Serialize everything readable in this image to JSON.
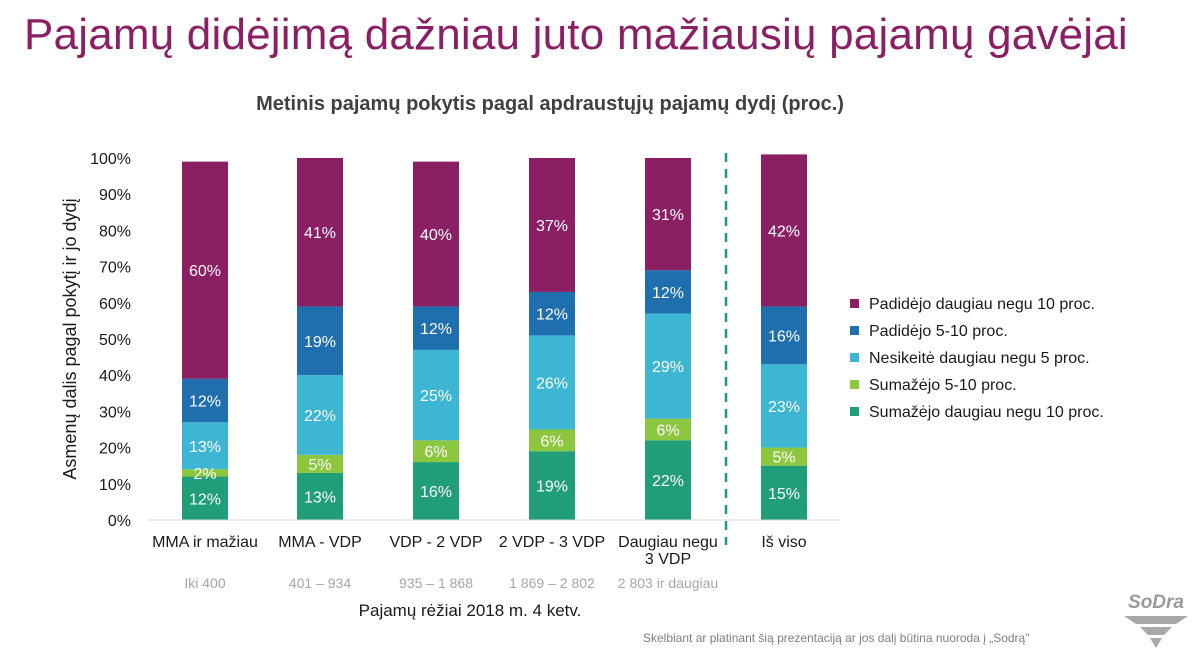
{
  "slide_title": "Pajamų didėjimą dažniau juto mažiausių pajamų gavėjai",
  "footer": "Skelbiant ar platinant šią prezentaciją ar jos dalį būtina nuoroda į „Sodrą\"",
  "logo_text": "SoDra",
  "chart_data": {
    "type": "bar",
    "stacked": true,
    "title": "Metinis pajamų pokytis pagal apdraustųjų pajamų dydį (proc.)",
    "ylabel": "Asmenų dalis pagal pokytį ir jo dydį",
    "xlabel": "Pajamų rėžiai 2018 m. 4 ketv.",
    "ylim": [
      0,
      100
    ],
    "y_ticks": [
      "0%",
      "10%",
      "20%",
      "30%",
      "40%",
      "50%",
      "60%",
      "70%",
      "80%",
      "90%",
      "100%"
    ],
    "categories": [
      "MMA ir mažiau",
      "MMA - VDP",
      "VDP - 2 VDP",
      "2 VDP - 3 VDP",
      "Daugiau negu 3 VDP",
      "Iš viso"
    ],
    "category_lines": [
      [
        "MMA ir mažiau"
      ],
      [
        "MMA - VDP"
      ],
      [
        "VDP - 2 VDP"
      ],
      [
        "2 VDP - 3 VDP"
      ],
      [
        "Daugiau negu",
        "3 VDP"
      ],
      [
        "Iš viso"
      ]
    ],
    "sub_labels": [
      "Iki 400",
      "401 – 934",
      "935 – 1 868",
      "1 869 – 2 802",
      "2 803 ir daugiau",
      ""
    ],
    "separator_before_index": 5,
    "legend_position": "right",
    "series": [
      {
        "name": "Sumažėjo daugiau negu 10 proc.",
        "color": "#1f9e78",
        "values": [
          12,
          13,
          16,
          19,
          22,
          15
        ]
      },
      {
        "name": "Sumažėjo 5-10 proc.",
        "color": "#8dc63f",
        "values": [
          2,
          5,
          6,
          6,
          6,
          5
        ]
      },
      {
        "name": "Nesikeitė daugiau negu 5 proc.",
        "color": "#3cb6d3",
        "values": [
          13,
          22,
          25,
          26,
          29,
          23
        ]
      },
      {
        "name": "Padidėjo 5-10 proc.",
        "color": "#1f6fae",
        "values": [
          12,
          19,
          12,
          12,
          12,
          16
        ]
      },
      {
        "name": "Padidėjo daugiau negu 10 proc.",
        "color": "#8b1f64",
        "values": [
          60,
          41,
          40,
          37,
          31,
          42
        ]
      }
    ],
    "legend_order": [
      4,
      3,
      2,
      1,
      0
    ]
  }
}
